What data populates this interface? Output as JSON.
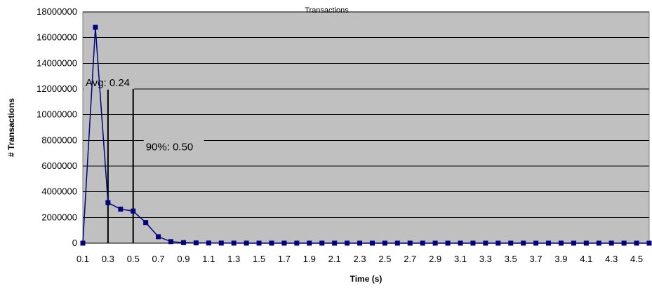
{
  "chart_data": {
    "type": "line",
    "title": "Transactions",
    "xlabel": "Time (s)",
    "ylabel": "# Transactions",
    "ylim": [
      0,
      18000000
    ],
    "y_ticks": [
      "0",
      "2000000",
      "4000000",
      "6000000",
      "8000000",
      "10000000",
      "12000000",
      "14000000",
      "16000000",
      "18000000"
    ],
    "x_tick_labels": [
      "0.1",
      "0.3",
      "0.5",
      "0.7",
      "0.9",
      "1.1",
      "1.3",
      "1.5",
      "1.7",
      "1.9",
      "2.1",
      "2.3",
      "2.5",
      "2.7",
      "2.9",
      "3.1",
      "3.3",
      "3.5",
      "3.7",
      "3.9",
      "4.1",
      "4.3",
      "4.5"
    ],
    "grid": true,
    "legend": "none",
    "series_color": "#000080",
    "plot_background": "#c0c0c0",
    "x": [
      0.1,
      0.2,
      0.3,
      0.4,
      0.5,
      0.6,
      0.7,
      0.8,
      0.9,
      1.0,
      1.1,
      1.2,
      1.3,
      1.4,
      1.5,
      1.6,
      1.7,
      1.8,
      1.9,
      2.0,
      2.1,
      2.2,
      2.3,
      2.4,
      2.5,
      2.6,
      2.7,
      2.8,
      2.9,
      3.0,
      3.1,
      3.2,
      3.3,
      3.4,
      3.5,
      3.6,
      3.7,
      3.8,
      3.9,
      4.0,
      4.1,
      4.2,
      4.3,
      4.4,
      4.5,
      4.6
    ],
    "values": [
      0,
      16800000,
      3150000,
      2650000,
      2500000,
      1600000,
      500000,
      120000,
      40000,
      20000,
      10000,
      5000,
      3000,
      2000,
      1000,
      1000,
      0,
      0,
      0,
      0,
      0,
      0,
      0,
      0,
      0,
      0,
      0,
      0,
      0,
      0,
      0,
      0,
      0,
      0,
      0,
      0,
      0,
      0,
      0,
      0,
      0,
      0,
      0,
      0,
      0,
      0
    ],
    "annotations": [
      {
        "text": "Avg: 0.24",
        "x": 0.3
      },
      {
        "text": "90%: 0.50",
        "x": 0.5
      }
    ]
  }
}
